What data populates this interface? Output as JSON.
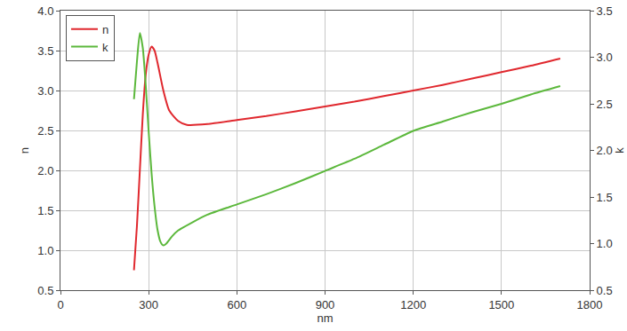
{
  "chart_data": {
    "type": "line",
    "x_label": "nm",
    "y_label": "n",
    "y2_label": "k",
    "xlim": [
      0,
      1800
    ],
    "xticks": [
      0,
      300,
      600,
      900,
      1200,
      1500,
      1800
    ],
    "ylim": [
      0.5,
      4.0
    ],
    "yticks": [
      {
        "value": 0.5,
        "label": "0.5"
      },
      {
        "value": 1.0,
        "label": "1.0"
      },
      {
        "value": 1.5,
        "label": "1.5"
      },
      {
        "value": 2.0,
        "label": "2.0"
      },
      {
        "value": 2.5,
        "label": "2.5"
      },
      {
        "value": 3.0,
        "label": "3.0"
      },
      {
        "value": 3.5,
        "label": "3.5"
      },
      {
        "value": 4.0,
        "label": "4.0"
      }
    ],
    "y2lim": [
      0.5,
      3.5
    ],
    "y2ticks": [
      {
        "value": 0.5,
        "label": "0.5"
      },
      {
        "value": 1.0,
        "label": "1.0"
      },
      {
        "value": 1.5,
        "label": "1.5"
      },
      {
        "value": 2.0,
        "label": "2.0"
      },
      {
        "value": 2.5,
        "label": "2.5"
      },
      {
        "value": 3.0,
        "label": "3.0"
      },
      {
        "value": 3.5,
        "label": "3.5"
      }
    ],
    "grid": true,
    "legend": "upper left",
    "series": [
      {
        "name": "n",
        "color": "#e0282e",
        "x": [
          250,
          260,
          270,
          280,
          290,
          300,
          310,
          320,
          330,
          350,
          370,
          400,
          430,
          500,
          600,
          700,
          800,
          900,
          1000,
          1100,
          1200,
          1300,
          1400,
          1500,
          1600,
          1700
        ],
        "values": [
          0.75,
          1.3,
          2.0,
          2.7,
          3.2,
          3.45,
          3.55,
          3.5,
          3.35,
          3.0,
          2.75,
          2.62,
          2.57,
          2.58,
          2.63,
          2.68,
          2.74,
          2.8,
          2.86,
          2.93,
          3.0,
          3.07,
          3.15,
          3.23,
          3.31,
          3.4
        ]
      },
      {
        "name": "k",
        "color": "#5cb83c",
        "axis": "y2",
        "x": [
          250,
          260,
          270,
          280,
          290,
          300,
          310,
          320,
          330,
          340,
          350,
          360,
          380,
          400,
          450,
          500,
          600,
          700,
          800,
          900,
          1000,
          1100,
          1200,
          1300,
          1400,
          1500,
          1600,
          1700
        ],
        "values": [
          2.55,
          2.95,
          3.26,
          3.1,
          2.7,
          2.2,
          1.75,
          1.4,
          1.15,
          1.02,
          0.98,
          1.0,
          1.08,
          1.14,
          1.23,
          1.31,
          1.42,
          1.53,
          1.65,
          1.78,
          1.91,
          2.06,
          2.21,
          2.31,
          2.41,
          2.5,
          2.6,
          2.69
        ]
      }
    ]
  }
}
